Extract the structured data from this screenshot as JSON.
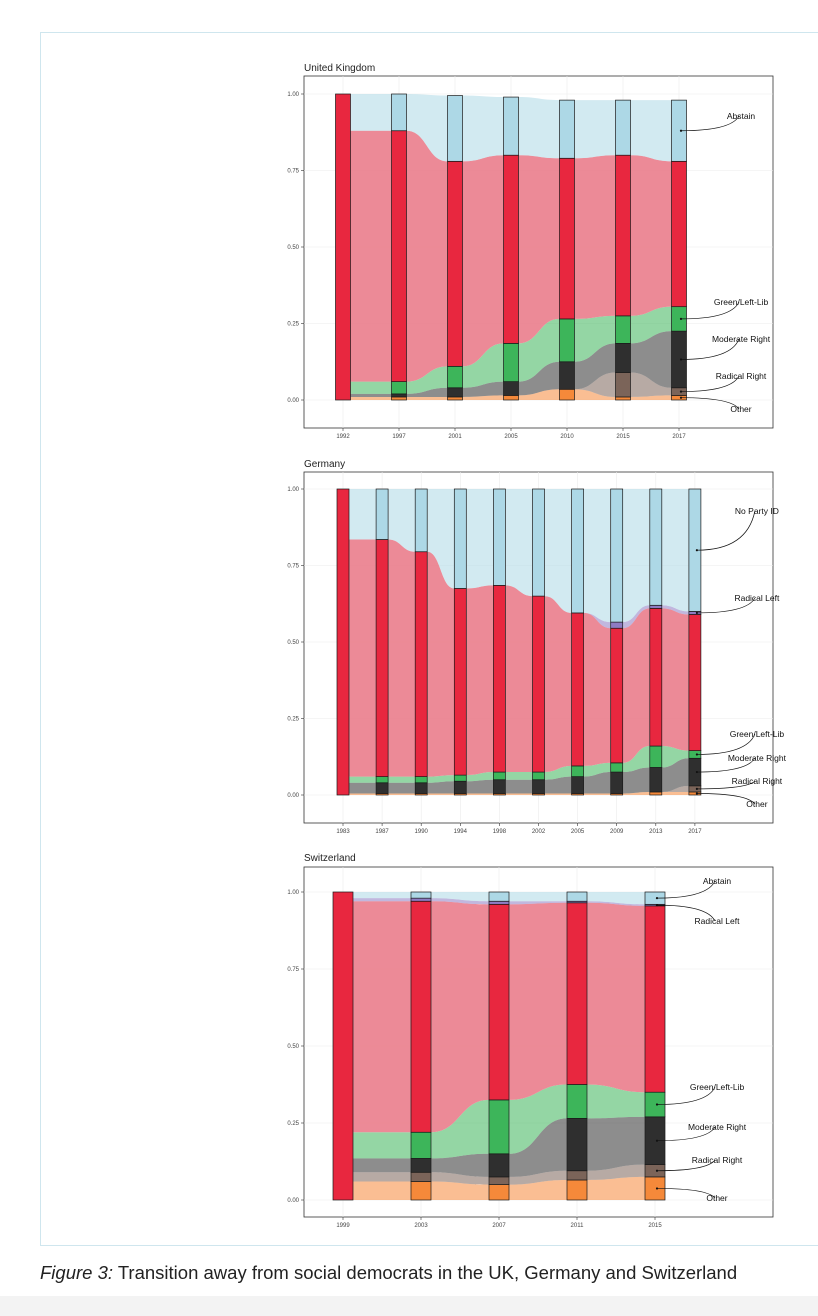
{
  "caption": {
    "label": "Figure 3:",
    "text": " Transition away from social democrats in the UK, Germany and Switzerland"
  },
  "colors": {
    "sd": "#e8273f",
    "abstain": "#add8e6",
    "green": "#3db55a",
    "modright": "#2f2f2f",
    "radright": "#7b6459",
    "other": "#f5893a",
    "radleft": "#8e7cc3",
    "flow_sd": "#e97585"
  },
  "chart_data": [
    {
      "type": "alluvial",
      "title": "United Kingdom",
      "categories": [
        "1992",
        "1997",
        "2001",
        "2005",
        "2010",
        "2015",
        "2017"
      ],
      "ylim": [
        0,
        1
      ],
      "yticks": [
        "0.00",
        "0.25",
        "0.50",
        "0.75",
        "1.00"
      ],
      "xlabel": "",
      "ylabel": "",
      "series": [
        {
          "name": "Other",
          "key": "other",
          "values": [
            0,
            0.01,
            0.01,
            0.015,
            0.035,
            0.01,
            0.015
          ]
        },
        {
          "name": "Radical Right",
          "key": "radright",
          "values": [
            0,
            0,
            0,
            0,
            0,
            0.08,
            0.025
          ]
        },
        {
          "name": "Moderate Right",
          "key": "modright",
          "values": [
            0,
            0.01,
            0.03,
            0.045,
            0.09,
            0.095,
            0.185
          ]
        },
        {
          "name": "Green/Left-Lib",
          "key": "green",
          "values": [
            0,
            0.04,
            0.07,
            0.125,
            0.14,
            0.09,
            0.08
          ]
        },
        {
          "name": "Social Democrats",
          "key": "sd",
          "values": [
            1,
            0.82,
            0.67,
            0.615,
            0.525,
            0.525,
            0.475
          ]
        },
        {
          "name": "Abstain",
          "key": "abstain",
          "values": [
            0,
            0.12,
            0.215,
            0.19,
            0.19,
            0.18,
            0.2
          ]
        }
      ],
      "labels": [
        {
          "text": "Abstain",
          "series": "Abstain",
          "bar": 6
        },
        {
          "text": "Green/Left-Lib",
          "series": "Green/Left-Lib",
          "bar": 6
        },
        {
          "text": "Moderate Right",
          "series": "Moderate Right",
          "bar": 6
        },
        {
          "text": "Radical Right",
          "series": "Radical Right",
          "bar": 6
        },
        {
          "text": "Other",
          "series": "Other",
          "bar": 6
        }
      ]
    },
    {
      "type": "alluvial",
      "title": "Germany",
      "categories": [
        "1983",
        "1987",
        "1990",
        "1994",
        "1998",
        "2002",
        "2005",
        "2009",
        "2013",
        "2017"
      ],
      "ylim": [
        0,
        1
      ],
      "yticks": [
        "0.00",
        "0.25",
        "0.50",
        "0.75",
        "1.00"
      ],
      "xlabel": "",
      "ylabel": "",
      "series": [
        {
          "name": "Other",
          "key": "other",
          "values": [
            0,
            0.005,
            0.005,
            0.005,
            0.005,
            0.005,
            0.005,
            0.005,
            0.01,
            0.01
          ]
        },
        {
          "name": "Radical Right",
          "key": "radright",
          "values": [
            0,
            0,
            0,
            0,
            0,
            0,
            0,
            0,
            0,
            0.02
          ]
        },
        {
          "name": "Moderate Right",
          "key": "modright",
          "values": [
            0,
            0.035,
            0.035,
            0.04,
            0.045,
            0.045,
            0.055,
            0.07,
            0.08,
            0.09
          ]
        },
        {
          "name": "Green/Left-Lib",
          "key": "green",
          "values": [
            0,
            0.02,
            0.02,
            0.02,
            0.025,
            0.025,
            0.035,
            0.03,
            0.07,
            0.025
          ]
        },
        {
          "name": "Social Democrats",
          "key": "sd",
          "values": [
            1,
            0.775,
            0.735,
            0.61,
            0.61,
            0.575,
            0.5,
            0.44,
            0.45,
            0.445
          ]
        },
        {
          "name": "Radical Left",
          "key": "radleft",
          "values": [
            0,
            0,
            0,
            0,
            0,
            0,
            0,
            0.02,
            0.01,
            0.01
          ]
        },
        {
          "name": "No Party ID",
          "key": "abstain",
          "values": [
            0,
            0.165,
            0.205,
            0.325,
            0.315,
            0.35,
            0.405,
            0.435,
            0.38,
            0.4
          ]
        }
      ],
      "labels": [
        {
          "text": "No Party ID",
          "series": "No Party ID",
          "bar": 9
        },
        {
          "text": "Radical Left",
          "series": "Radical Left",
          "bar": 9
        },
        {
          "text": "Green/Left-Lib",
          "series": "Green/Left-Lib",
          "bar": 9
        },
        {
          "text": "Moderate Right",
          "series": "Moderate Right",
          "bar": 9
        },
        {
          "text": "Radical Right",
          "series": "Radical Right",
          "bar": 9
        },
        {
          "text": "Other",
          "series": "Other",
          "bar": 9
        }
      ]
    },
    {
      "type": "alluvial",
      "title": "Switzerland",
      "categories": [
        "1999",
        "2003",
        "2007",
        "2011",
        "2015"
      ],
      "ylim": [
        0,
        1
      ],
      "yticks": [
        "0.00",
        "0.25",
        "0.50",
        "0.75",
        "1.00"
      ],
      "xlabel": "",
      "ylabel": "",
      "series": [
        {
          "name": "Other",
          "key": "other",
          "values": [
            0,
            0.06,
            0.05,
            0.065,
            0.075
          ]
        },
        {
          "name": "Radical Right",
          "key": "radright",
          "values": [
            0,
            0.03,
            0.025,
            0.03,
            0.04
          ]
        },
        {
          "name": "Moderate Right",
          "key": "modright",
          "values": [
            0,
            0.045,
            0.075,
            0.17,
            0.155
          ]
        },
        {
          "name": "Green/Left-Lib",
          "key": "green",
          "values": [
            0,
            0.085,
            0.175,
            0.11,
            0.08
          ]
        },
        {
          "name": "Social Democrats",
          "key": "sd",
          "values": [
            1,
            0.75,
            0.635,
            0.59,
            0.605
          ]
        },
        {
          "name": "Radical Left",
          "key": "radleft",
          "values": [
            0,
            0.01,
            0.01,
            0.005,
            0.005
          ]
        },
        {
          "name": "Abstain",
          "key": "abstain",
          "values": [
            0,
            0.02,
            0.03,
            0.03,
            0.04
          ]
        }
      ],
      "labels": [
        {
          "text": "Abstain",
          "series": "Abstain",
          "bar": 4
        },
        {
          "text": "Radical Left",
          "series": "Radical Left",
          "bar": 4
        },
        {
          "text": "Green/Left-Lib",
          "series": "Green/Left-Lib",
          "bar": 4
        },
        {
          "text": "Moderate Right",
          "series": "Moderate Right",
          "bar": 4
        },
        {
          "text": "Radical Right",
          "series": "Radical Right",
          "bar": 4
        },
        {
          "text": "Other",
          "series": "Other",
          "bar": 4
        }
      ]
    }
  ]
}
